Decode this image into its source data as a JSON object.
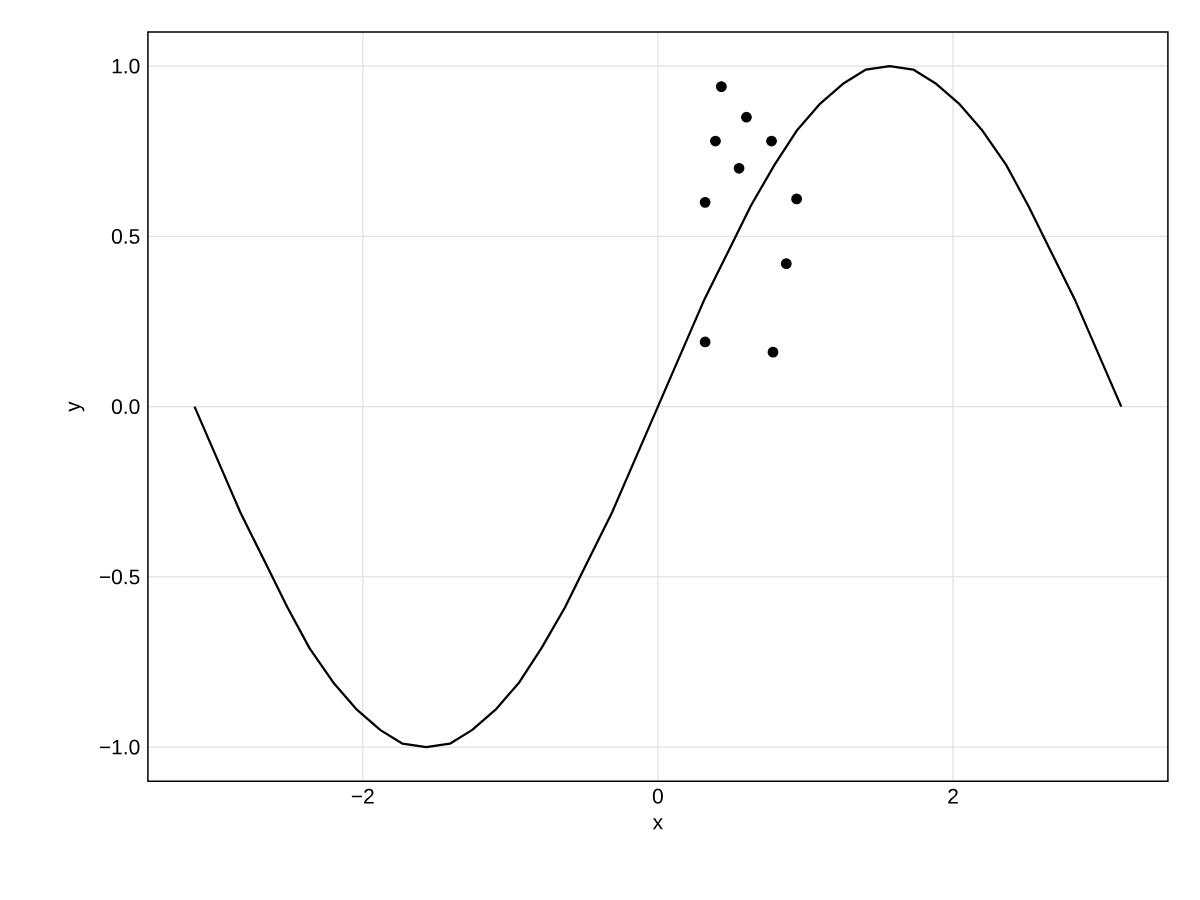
{
  "chart_data": {
    "type": "line",
    "xlabel": "x",
    "ylabel": "y",
    "xlim": [
      -3.456,
      3.456
    ],
    "ylim": [
      -1.1,
      1.1
    ],
    "xticks": [
      {
        "value": -2,
        "label": "−2"
      },
      0,
      2
    ],
    "yticks": [
      {
        "value": -1,
        "label": "−1.0"
      },
      {
        "value": -0.5,
        "label": "−0.5"
      },
      {
        "value": 0,
        "label": "0.0"
      },
      {
        "value": 0.5,
        "label": "0.5"
      },
      {
        "value": 1,
        "label": "1.0"
      }
    ],
    "grid": true,
    "series": [
      {
        "color": "#000000",
        "marker": "none",
        "x": [
          -3.14,
          -2.98,
          -2.83,
          -2.67,
          -2.51,
          -2.36,
          -2.2,
          -2.04,
          -1.88,
          -1.73,
          -1.57,
          -1.41,
          -1.26,
          -1.1,
          -0.94,
          -0.79,
          -0.63,
          -0.47,
          -0.31,
          -0.16,
          0,
          0.16,
          0.31,
          0.47,
          0.63,
          0.79,
          0.94,
          1.1,
          1.26,
          1.41,
          1.57,
          1.73,
          1.88,
          2.04,
          2.2,
          2.36,
          2.51,
          2.67,
          2.83,
          2.98,
          3.14
        ],
        "values": [
          0,
          -0.16,
          -0.31,
          -0.45,
          -0.59,
          -0.71,
          -0.81,
          -0.89,
          -0.95,
          -0.99,
          -1,
          -0.99,
          -0.95,
          -0.89,
          -0.81,
          -0.71,
          -0.59,
          -0.45,
          -0.31,
          -0.16,
          0,
          0.16,
          0.31,
          0.45,
          0.59,
          0.71,
          0.81,
          0.89,
          0.95,
          0.99,
          1,
          0.99,
          0.95,
          0.89,
          0.81,
          0.71,
          0.59,
          0.45,
          0.31,
          0.16,
          0
        ]
      },
      {
        "type": "scatter",
        "color": "#000000",
        "marker": "circle",
        "x": [
          0.43,
          0.6,
          0.39,
          0.77,
          0.55,
          0.32,
          0.94,
          0.87,
          0.32,
          0.78
        ],
        "values": [
          0.94,
          0.85,
          0.78,
          0.78,
          0.7,
          0.6,
          0.61,
          0.42,
          0.19,
          0.16
        ]
      }
    ]
  }
}
